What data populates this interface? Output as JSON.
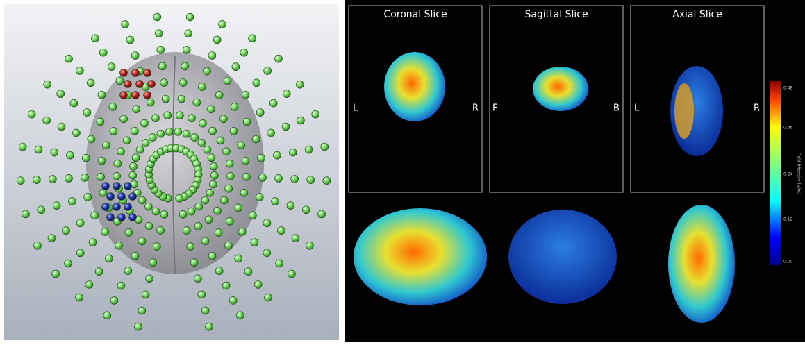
{
  "slices": [
    {
      "title": "Coronal Slice",
      "left": "L",
      "right": "R"
    },
    {
      "title": "Sagittal Slice",
      "left": "F",
      "right": "B"
    },
    {
      "title": "Axial Slice",
      "left": "L",
      "right": "R"
    }
  ],
  "colorbar": {
    "title": "Field Intensity (V/m)",
    "ticks": [
      "0.48",
      "0.36",
      "0.24",
      "0.12",
      "0.00"
    ]
  }
}
